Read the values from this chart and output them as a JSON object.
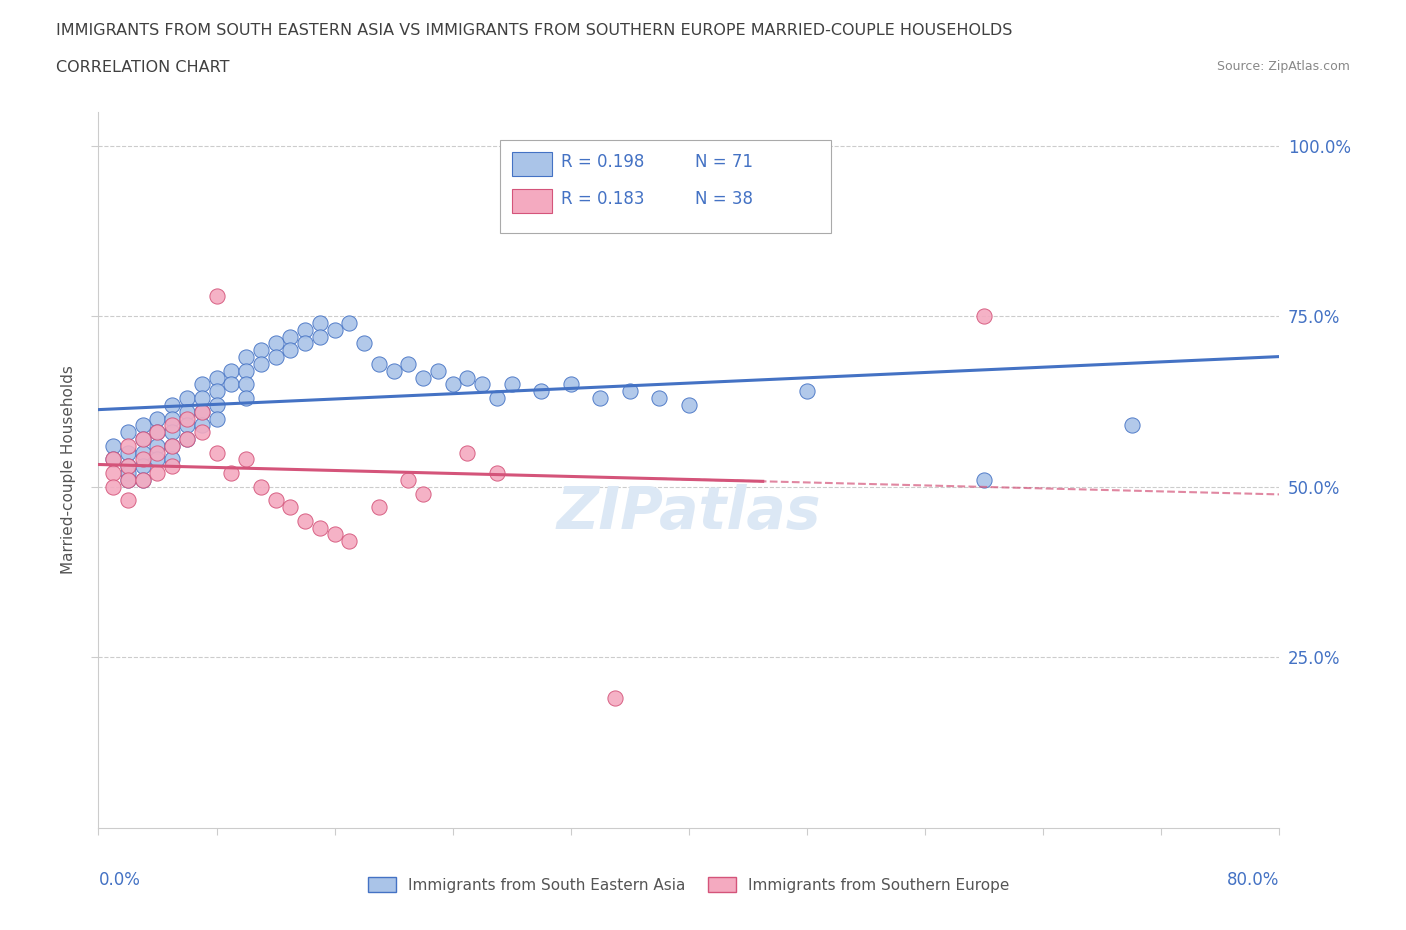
{
  "title_line1": "IMMIGRANTS FROM SOUTH EASTERN ASIA VS IMMIGRANTS FROM SOUTHERN EUROPE MARRIED-COUPLE HOUSEHOLDS",
  "title_line2": "CORRELATION CHART",
  "source": "Source: ZipAtlas.com",
  "ylabel": "Married-couple Households",
  "color_sea": "#aac4e8",
  "color_europe": "#f4aac0",
  "color_sea_line": "#4472c4",
  "color_europe_line": "#d4547a",
  "color_title": "#404040",
  "color_source": "#888888",
  "color_ytick": "#4472c4",
  "color_grid": "#cccccc",
  "watermark_color": "#dce8f5",
  "xlim": [
    0.0,
    0.8
  ],
  "ylim": [
    0.0,
    1.05
  ],
  "ytick_vals": [
    0.25,
    0.5,
    0.75,
    1.0
  ],
  "ytick_labels": [
    "25.0%",
    "50.0%",
    "75.0%",
    "100.0%"
  ],
  "xtick_labels_show": [
    "0.0%",
    "80.0%"
  ],
  "legend_r1": "R = 0.198",
  "legend_n1": "N = 71",
  "legend_r2": "R = 0.183",
  "legend_n2": "N = 38",
  "sea_x": [
    0.01,
    0.01,
    0.02,
    0.02,
    0.02,
    0.02,
    0.02,
    0.03,
    0.03,
    0.03,
    0.03,
    0.03,
    0.04,
    0.04,
    0.04,
    0.04,
    0.05,
    0.05,
    0.05,
    0.05,
    0.05,
    0.06,
    0.06,
    0.06,
    0.06,
    0.07,
    0.07,
    0.07,
    0.07,
    0.08,
    0.08,
    0.08,
    0.08,
    0.09,
    0.09,
    0.1,
    0.1,
    0.1,
    0.1,
    0.11,
    0.11,
    0.12,
    0.12,
    0.13,
    0.13,
    0.14,
    0.14,
    0.15,
    0.15,
    0.16,
    0.17,
    0.18,
    0.19,
    0.2,
    0.21,
    0.22,
    0.23,
    0.24,
    0.25,
    0.26,
    0.27,
    0.28,
    0.3,
    0.32,
    0.34,
    0.36,
    0.38,
    0.4,
    0.48,
    0.6,
    0.7
  ],
  "sea_y": [
    0.56,
    0.54,
    0.58,
    0.55,
    0.53,
    0.52,
    0.51,
    0.59,
    0.57,
    0.55,
    0.53,
    0.51,
    0.6,
    0.58,
    0.56,
    0.54,
    0.62,
    0.6,
    0.58,
    0.56,
    0.54,
    0.63,
    0.61,
    0.59,
    0.57,
    0.65,
    0.63,
    0.61,
    0.59,
    0.66,
    0.64,
    0.62,
    0.6,
    0.67,
    0.65,
    0.69,
    0.67,
    0.65,
    0.63,
    0.7,
    0.68,
    0.71,
    0.69,
    0.72,
    0.7,
    0.73,
    0.71,
    0.74,
    0.72,
    0.73,
    0.74,
    0.71,
    0.68,
    0.67,
    0.68,
    0.66,
    0.67,
    0.65,
    0.66,
    0.65,
    0.63,
    0.65,
    0.64,
    0.65,
    0.63,
    0.64,
    0.63,
    0.62,
    0.64,
    0.51,
    0.59
  ],
  "europe_x": [
    0.01,
    0.01,
    0.01,
    0.02,
    0.02,
    0.02,
    0.02,
    0.03,
    0.03,
    0.03,
    0.04,
    0.04,
    0.04,
    0.05,
    0.05,
    0.05,
    0.06,
    0.06,
    0.07,
    0.07,
    0.08,
    0.08,
    0.09,
    0.1,
    0.11,
    0.12,
    0.13,
    0.14,
    0.15,
    0.16,
    0.17,
    0.19,
    0.21,
    0.22,
    0.25,
    0.27,
    0.35,
    0.6
  ],
  "europe_y": [
    0.54,
    0.52,
    0.5,
    0.56,
    0.53,
    0.51,
    0.48,
    0.57,
    0.54,
    0.51,
    0.58,
    0.55,
    0.52,
    0.59,
    0.56,
    0.53,
    0.6,
    0.57,
    0.61,
    0.58,
    0.78,
    0.55,
    0.52,
    0.54,
    0.5,
    0.48,
    0.47,
    0.45,
    0.44,
    0.43,
    0.42,
    0.47,
    0.51,
    0.49,
    0.55,
    0.52,
    0.19,
    0.75
  ],
  "sea_trend": [
    0.553,
    0.147
  ],
  "europe_trend": [
    0.475,
    0.243
  ],
  "dashed_line_color": "#d4547a",
  "dashed_line_start_x": 0.4,
  "dashed_line_end_x": 0.8
}
